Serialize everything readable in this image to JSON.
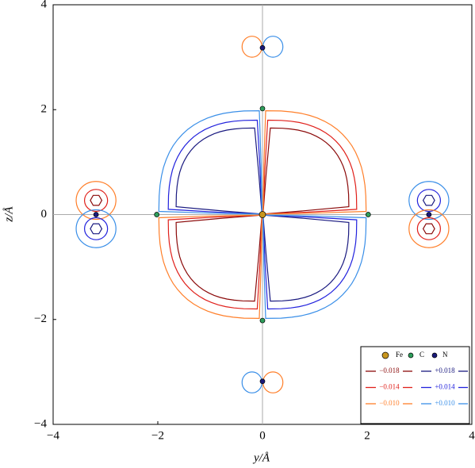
{
  "chart_data": {
    "type": "contour",
    "xlabel": "y/Å",
    "ylabel": "z/Å",
    "xlim": [
      -4,
      4
    ],
    "ylim": [
      -4,
      4
    ],
    "xticks": [
      {
        "value": -4,
        "label": "−4"
      },
      {
        "value": -2,
        "label": "−2"
      },
      0,
      2,
      4
    ],
    "yticks": [
      {
        "value": -4,
        "label": "−4"
      },
      {
        "value": -2,
        "label": "−2"
      },
      0,
      2,
      4
    ],
    "atoms": [
      {
        "name": "Fe",
        "color": "#c8961e",
        "x": [
          0
        ],
        "y": [
          0
        ]
      },
      {
        "name": "C",
        "color": "#2e9e5b",
        "x": [
          -2.02,
          2.02,
          0,
          0
        ],
        "y": [
          0,
          0,
          2.02,
          -2.02
        ]
      },
      {
        "name": "N",
        "color": "#1a1a7a",
        "x": [
          -3.18,
          3.18,
          0,
          0
        ],
        "y": [
          0,
          0,
          3.18,
          -3.18
        ]
      }
    ],
    "levels": [
      {
        "value": -0.018,
        "label": "−0.018",
        "color": "#8b0a0a"
      },
      {
        "value": -0.014,
        "label": "−0.014",
        "color": "#e0201b"
      },
      {
        "value": -0.01,
        "label": "−0.010",
        "color": "#ff7f2a"
      },
      {
        "value": 0.018,
        "label": "+0.018",
        "color": "#1a1a80"
      },
      {
        "value": 0.014,
        "label": "+0.014",
        "color": "#2222dd"
      },
      {
        "value": 0.01,
        "label": "+0.010",
        "color": "#3a8fe8"
      }
    ],
    "legend_position": "lower right"
  }
}
